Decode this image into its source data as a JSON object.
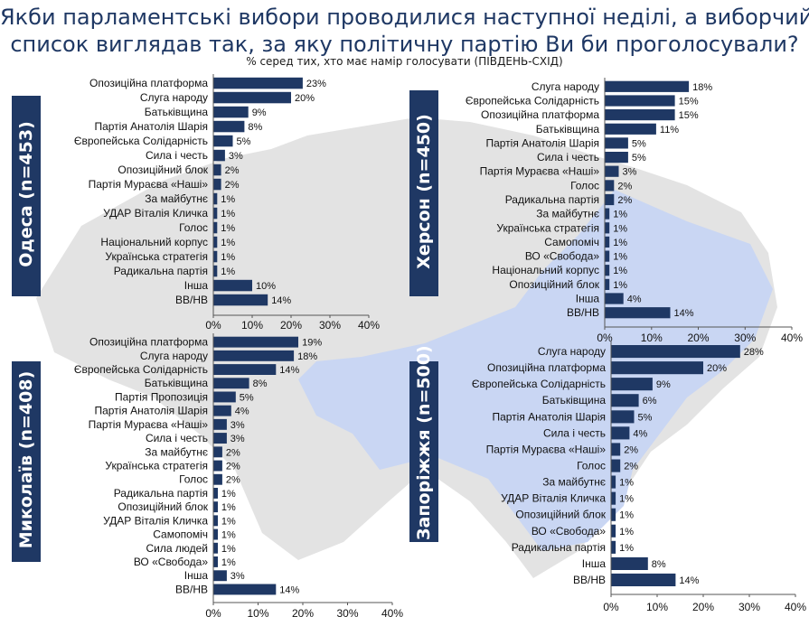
{
  "title_line1": "Якби парламентські вибори проводилися наступної неділі, а виборчий",
  "title_line2": "список виглядав так, за яку політичну партію Ви би проголосували?",
  "subtitle": "% серед тих, хто має намір голосувати (ПІВДЕНЬ-СХІД)",
  "colors": {
    "bar": "#1f3864",
    "map": "#e3e3e3",
    "map_highlight": "#c9d6f3",
    "title": "#1f3864"
  },
  "chart_data": [
    {
      "type": "bar",
      "region": "Одеса (n=453)",
      "categories": [
        "Опозиційна платформа",
        "Слуга народу",
        "Батьківщина",
        "Партія Анатолія Шарія",
        "Європейська Солідарність",
        "Сила і честь",
        "Опозиційний блок",
        "Партія Мураєва «Наші»",
        "За майбутнє",
        "УДАР Віталія Кличка",
        "Голос",
        "Національний корпус",
        "Українська стратегія",
        "Радикальна партія",
        "Інша",
        "ВВ/НВ"
      ],
      "values": [
        23,
        20,
        9,
        8,
        5,
        3,
        2,
        2,
        1,
        1,
        1,
        1,
        1,
        1,
        10,
        14
      ],
      "value_labels": [
        "23%",
        "20%",
        "9%",
        "8%",
        "5%",
        "3%",
        "2%",
        "2%",
        "1%",
        "1%",
        "1%",
        "1%",
        "1%",
        "1%",
        "10%",
        "14%"
      ],
      "xlim": [
        0,
        40
      ],
      "xticks": [
        "0%",
        "10%",
        "20%",
        "30%",
        "40%"
      ]
    },
    {
      "type": "bar",
      "region": "Херсон (n=450)",
      "categories": [
        "Слуга народу",
        "Європейська Солідарність",
        "Опозиційна платформа",
        "Батьківщина",
        "Партія Анатолія Шарія",
        "Сила і честь",
        "Партія Мураєва «Наші»",
        "Голос",
        "Радикальна партія",
        "За майбутнє",
        "Українська стратегія",
        "Самопоміч",
        "ВО «Свобода»",
        "Національний корпус",
        "Опозиційний блок",
        "Інша",
        "ВВ/НВ"
      ],
      "values": [
        18,
        15,
        15,
        11,
        5,
        5,
        3,
        2,
        2,
        1,
        1,
        1,
        1,
        1,
        1,
        4,
        14
      ],
      "value_labels": [
        "18%",
        "15%",
        "15%",
        "11%",
        "5%",
        "5%",
        "3%",
        "2%",
        "2%",
        "1%",
        "1%",
        "1%",
        "1%",
        "1%",
        "1%",
        "4%",
        "14%"
      ],
      "xlim": [
        0,
        40
      ],
      "xticks": [
        "0%",
        "10%",
        "20%",
        "30%",
        "40%"
      ]
    },
    {
      "type": "bar",
      "region": "Миколаїв (n=408)",
      "categories": [
        "Опозиційна платформа",
        "Слуга народу",
        "Європейська Солідарність",
        "Батьківщина",
        "Партія Пропозиція",
        "Партія Анатолія Шарія",
        "Партія Мураєва «Наші»",
        "Сила і честь",
        "За майбутнє",
        "Українська стратегія",
        "Голос",
        "Радикальна партія",
        "Опозиційний блок",
        "УДАР Віталія Кличка",
        "Самопоміч",
        "Сила людей",
        "ВО «Свобода»",
        "Інша",
        "ВВ/НВ"
      ],
      "values": [
        19,
        18,
        14,
        8,
        5,
        4,
        3,
        3,
        2,
        2,
        2,
        1,
        1,
        1,
        1,
        1,
        1,
        3,
        14
      ],
      "value_labels": [
        "19%",
        "18%",
        "14%",
        "8%",
        "5%",
        "4%",
        "3%",
        "3%",
        "2%",
        "2%",
        "2%",
        "1%",
        "1%",
        "1%",
        "1%",
        "1%",
        "1%",
        "3%",
        "14%"
      ],
      "xlim": [
        0,
        40
      ],
      "xticks": [
        "0%",
        "10%",
        "20%",
        "30%",
        "40%"
      ]
    },
    {
      "type": "bar",
      "region": "Запоріжжя (n=500)",
      "categories": [
        "Слуга народу",
        "Опозиційна платформа",
        "Європейська Солідарність",
        "Батьківщина",
        "Партія Анатолія Шарія",
        "Сила і честь",
        "Партія Мураєва «Наші»",
        "Голос",
        "За майбутнє",
        "УДАР Віталія Кличка",
        "Опозиційний блок",
        "ВО «Свобода»",
        "Радикальна партія",
        "Інша",
        "ВВ/НВ"
      ],
      "values": [
        28,
        20,
        9,
        6,
        5,
        4,
        2,
        2,
        1,
        1,
        1,
        1,
        1,
        8,
        14
      ],
      "value_labels": [
        "28%",
        "20%",
        "9%",
        "6%",
        "5%",
        "4%",
        "2%",
        "2%",
        "1%",
        "1%",
        "1%",
        "1%",
        "1%",
        "8%",
        "14%"
      ],
      "xlim": [
        0,
        40
      ],
      "xticks": [
        "0%",
        "10%",
        "20%",
        "30%",
        "40%"
      ]
    }
  ]
}
